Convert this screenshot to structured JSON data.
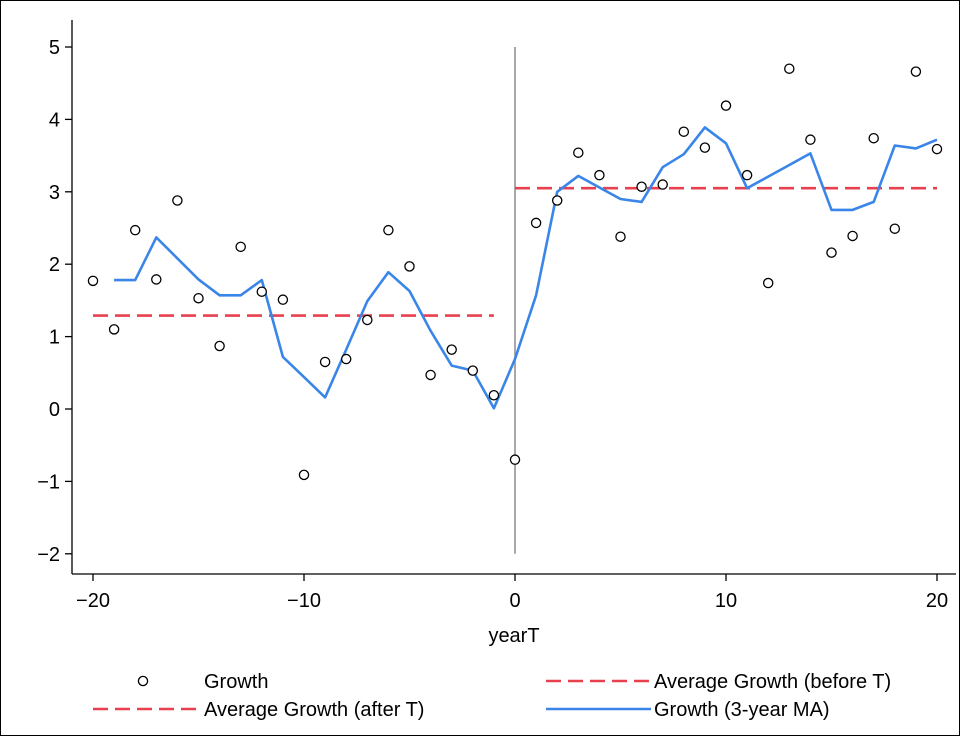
{
  "chart_data": {
    "type": "line",
    "title": "",
    "xlabel": "yearT",
    "ylabel": "",
    "xlim": [
      -21,
      21
    ],
    "ylim": [
      -2.2,
      5.2
    ],
    "xticks": [
      -20,
      -10,
      0,
      10,
      20
    ],
    "xtick_labels": [
      "−20",
      "−10",
      "0",
      "10",
      "20"
    ],
    "yticks": [
      -2,
      -1,
      0,
      1,
      2,
      3,
      4,
      5
    ],
    "ytick_labels": [
      "−2",
      "−1",
      "0",
      "1",
      "2",
      "3",
      "4",
      "5"
    ],
    "grid": false,
    "vline": {
      "x": 0,
      "y_from": -2,
      "y_to": 5,
      "color": "#8c8c8c"
    },
    "series": [
      {
        "name": "Growth",
        "kind": "scatter",
        "marker": "open-circle",
        "color": "#000000",
        "x": [
          -20,
          -19,
          -18,
          -17,
          -16,
          -15,
          -14,
          -13,
          -12,
          -11,
          -10,
          -9,
          -8,
          -7,
          -6,
          -5,
          -4,
          -3,
          -2,
          -1,
          0,
          1,
          2,
          3,
          4,
          5,
          6,
          7,
          8,
          9,
          10,
          11,
          12,
          13,
          14,
          15,
          16,
          17,
          18,
          19,
          20
        ],
        "y": [
          1.77,
          1.1,
          2.47,
          1.79,
          2.88,
          1.53,
          0.87,
          2.24,
          1.62,
          1.51,
          -0.91,
          0.65,
          0.69,
          1.23,
          2.47,
          1.97,
          0.47,
          0.82,
          0.53,
          0.19,
          -0.7,
          2.57,
          2.88,
          3.54,
          3.23,
          2.38,
          3.07,
          3.1,
          3.83,
          3.61,
          4.19,
          3.23,
          1.74,
          4.7,
          3.72,
          2.16,
          2.39,
          3.74,
          2.49,
          4.66,
          3.59
        ]
      },
      {
        "name": "Average Growth (before T)",
        "kind": "dashed",
        "color": "#e8404f",
        "x": [
          -20,
          -1
        ],
        "y": [
          1.29,
          1.29
        ]
      },
      {
        "name": "Average Growth (after T)",
        "kind": "dashed",
        "color": "#e8404f",
        "x": [
          0,
          20
        ],
        "y": [
          3.05,
          3.05
        ]
      },
      {
        "name": "Growth (3-year MA)",
        "kind": "line",
        "color": "#3a86e8",
        "x": [
          -19,
          -18,
          -17,
          -16,
          -15,
          -14,
          -13,
          -12,
          -11,
          -10,
          -9,
          -8,
          -7,
          -6,
          -5,
          -4,
          -3,
          -2,
          -1,
          0,
          1,
          2,
          3,
          4,
          5,
          6,
          7,
          8,
          9,
          10,
          11,
          12,
          13,
          14,
          15,
          16,
          17,
          18,
          19,
          20
        ],
        "y": [
          1.78,
          1.78,
          2.37,
          2.08,
          1.79,
          1.57,
          1.57,
          1.78,
          0.72,
          0.44,
          0.16,
          0.82,
          1.49,
          1.89,
          1.63,
          1.08,
          0.6,
          0.53,
          0.01,
          0.69,
          1.57,
          3.0,
          3.22,
          3.06,
          2.9,
          2.86,
          3.34,
          3.52,
          3.89,
          3.67,
          3.05,
          3.21,
          3.37,
          3.53,
          2.75,
          2.75,
          2.86,
          3.64,
          3.6,
          3.72
        ]
      }
    ],
    "legend": {
      "placement": "bottom",
      "entries": [
        {
          "label": "Growth",
          "series": 0
        },
        {
          "label": "Average Growth (before T)",
          "series": 1
        },
        {
          "label": "Average Growth (after T)",
          "series": 2
        },
        {
          "label": "Growth (3-year MA)",
          "series": 3
        }
      ]
    }
  }
}
